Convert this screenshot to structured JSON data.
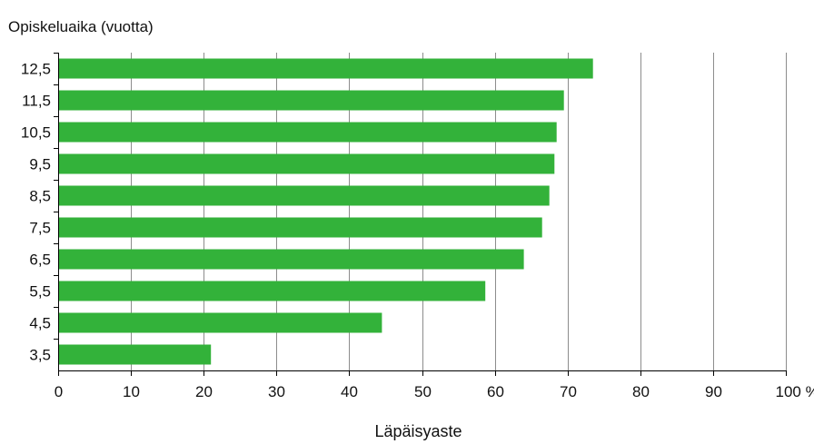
{
  "chart_data": {
    "type": "bar",
    "orientation": "horizontal",
    "title": "",
    "ylabel": "Opiskeluaika (vuotta)",
    "xlabel": "Läpäisyaste",
    "x_unit": "%",
    "categories": [
      "12,5",
      "11,5",
      "10,5",
      "9,5",
      "8,5",
      "7,5",
      "6,5",
      "5,5",
      "4,5",
      "3,5"
    ],
    "values": [
      73.5,
      69.5,
      68.5,
      68.2,
      67.5,
      66.5,
      64,
      58.7,
      44.5,
      21
    ],
    "xlim": [
      0,
      100
    ],
    "xticks": [
      0,
      10,
      20,
      30,
      40,
      50,
      60,
      70,
      80,
      90,
      100
    ],
    "xtick_labels": [
      "0",
      "10",
      "20",
      "30",
      "40",
      "50",
      "60",
      "70",
      "80",
      "90",
      "100 %"
    ],
    "grid": "vertical",
    "bar_color": "#33b23a"
  }
}
